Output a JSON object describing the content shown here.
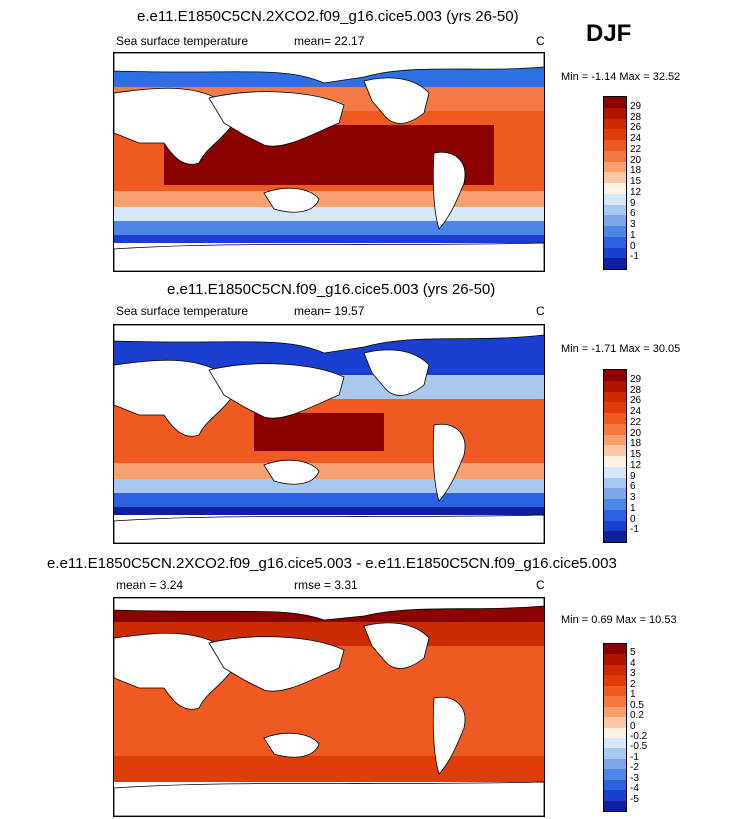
{
  "season": "DJF",
  "panel1": {
    "title": "e.e11.E1850C5CN.2XCO2.f09_g16.cice5.003 (yrs 26-50)",
    "variable": "Sea surface temperature",
    "mean": "mean=  22.17",
    "units": "C",
    "minmax": "Min =  -1.14 Max =  32.52"
  },
  "panel2": {
    "title": "e.e11.E1850C5CN.f09_g16.cice5.003 (yrs 26-50)",
    "variable": "Sea surface temperature",
    "mean": "mean=  19.57",
    "units": "C",
    "minmax": "Min =  -1.71 Max =  30.05"
  },
  "panel3": {
    "title": "e.e11.E1850C5CN.2XCO2.f09_g16.cice5.003 - e.e11.E1850C5CN.f09_g16.cice5.003",
    "mean": "mean =   3.24",
    "rmse": "rmse =   3.31",
    "units": "C",
    "minmax": "Min =  0.69 Max =  10.53"
  },
  "sst_colorbar": {
    "labels": [
      "29",
      "28",
      "26",
      "24",
      "22",
      "20",
      "18",
      "15",
      "12",
      "9",
      "6",
      "3",
      "1",
      "0",
      "-1"
    ],
    "colors": [
      "#8b0000",
      "#b01400",
      "#cc2a00",
      "#e03c0a",
      "#ef5a22",
      "#f5793f",
      "#f8a070",
      "#fbc8a6",
      "#fff1e6",
      "#d5e7f8",
      "#a9c8f0",
      "#7aa8ea",
      "#4d86e6",
      "#2a62e0",
      "#1a3fd0",
      "#0f1fa0"
    ]
  },
  "diff_colorbar": {
    "labels": [
      "5",
      "4",
      "3",
      "2",
      "1",
      "0.5",
      "0.2",
      "0",
      "-0.2",
      "-0.5",
      "-1",
      "-2",
      "-3",
      "-4",
      "-5"
    ],
    "colors": [
      "#8b0000",
      "#b01400",
      "#cc2a00",
      "#e03c0a",
      "#ef5a22",
      "#f5793f",
      "#f8a070",
      "#fbc8a6",
      "#fff1e6",
      "#d5e7f8",
      "#a9c8f0",
      "#7aa8ea",
      "#4d86e6",
      "#2a62e0",
      "#1a3fd0",
      "#0f1fa0"
    ]
  }
}
